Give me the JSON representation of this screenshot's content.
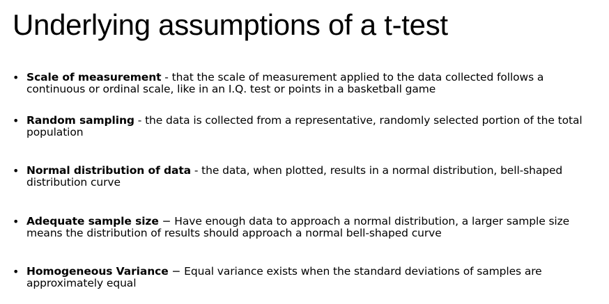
{
  "slide": {
    "title": "Underlying assumptions of a t-test",
    "bullet_symbol": "•",
    "bullets": [
      {
        "term": "Scale of measurement",
        "text": " - that the scale of measurement applied to the data collected follows a continuous or ordinal scale, like in an I.Q. test or points in a basketball game"
      },
      {
        "term": "Random sampling",
        "text": " - the data is collected from a representative, randomly selected portion of the total population"
      },
      {
        "term": "Normal distribution of data",
        "text": " - the data, when plotted, results in a normal distribution, bell-shaped distribution curve"
      },
      {
        "term": "Adequate sample size",
        "text": " − Have enough data to approach a normal distribution, a larger sample size means the distribution of results should approach a normal bell-shaped curve"
      },
      {
        "term": "Homogeneous Variance",
        "text": " − Equal variance exists when the standard deviations of samples are approximately equal"
      }
    ]
  }
}
